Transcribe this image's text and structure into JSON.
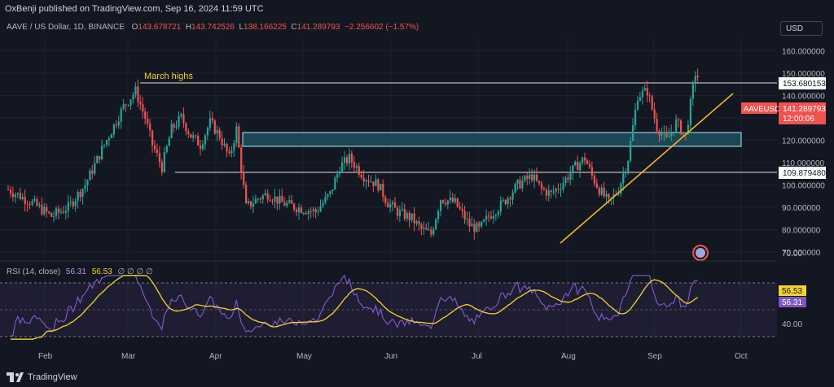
{
  "header": {
    "published_text": "OxBenji published on TradingView.com, Sep 16, 2024 11:59 UTC"
  },
  "legend": {
    "symbol": "AAVE / US Dollar, 1D, BINANCE",
    "open": "143.678721",
    "high": "143.742526",
    "low": "138.166225",
    "close": "141.289793",
    "change": "−2.256602 (−1.57%)"
  },
  "currency_button": "USD",
  "annotations": {
    "march_highs": "March highs"
  },
  "price_labels": {
    "level_high": "153.680153",
    "level_low": "109.879480",
    "ticker": "AAVEUSD",
    "last_price": "141.289793",
    "countdown": "12:00:06"
  },
  "rsi": {
    "legend": "RSI (14, close)",
    "value_a": "56.31",
    "value_b": "56.53",
    "extra": "∅ ∅ ∅ ∅",
    "label_ma": "56.53",
    "label_rsi": "56.31",
    "tick_70": "70.00",
    "tick_40": "40.00"
  },
  "footer": {
    "brand": "TradingView"
  },
  "colors": {
    "background": "#131722",
    "up": "#26a69a",
    "down": "#ef5350",
    "trendline": "#f5b524",
    "rsi_line": "#7e57c2",
    "rsi_ma": "#f5d22e",
    "zone_fill": "#1f4f5c"
  },
  "chart_data": {
    "type": "candlestick",
    "title": "AAVE / US Dollar, 1D, BINANCE",
    "y_ticks": [
      "160.000000",
      "150.000000",
      "140.000000",
      "130.000000",
      "120.000000",
      "110.000000",
      "100.000000",
      "90.000000",
      "80.000000",
      "70.000000"
    ],
    "y_values": [
      160,
      150,
      140,
      130,
      120,
      110,
      100,
      90,
      80,
      70
    ],
    "x_ticks": [
      "Feb",
      "Mar",
      "Apr",
      "May",
      "Jun",
      "Jul",
      "Aug",
      "Sep",
      "Oct"
    ],
    "ylim": [
      66,
      166
    ],
    "horizontal_levels": [
      153.68,
      109.88
    ],
    "zone": {
      "top": 129.5,
      "bottom": 122.5,
      "from": "Apr",
      "to": "Sep"
    },
    "trendline": {
      "from": [
        76,
        "Aug"
      ],
      "to": [
        149,
        "Sep"
      ]
    },
    "close_approx_by_month": {
      "Jan": 97,
      "Feb": 87,
      "Mar": 140,
      "Apr": 125,
      "May": 90,
      "Jun": 105,
      "Jul": 78,
      "Aug": 95,
      "Sep": 141.29
    },
    "last": {
      "open": 143.678721,
      "high": 143.742526,
      "low": 138.166225,
      "close": 141.289793
    },
    "rsi_ylim": [
      30,
      80
    ],
    "rsi_levels": [
      70,
      50,
      30
    ]
  }
}
